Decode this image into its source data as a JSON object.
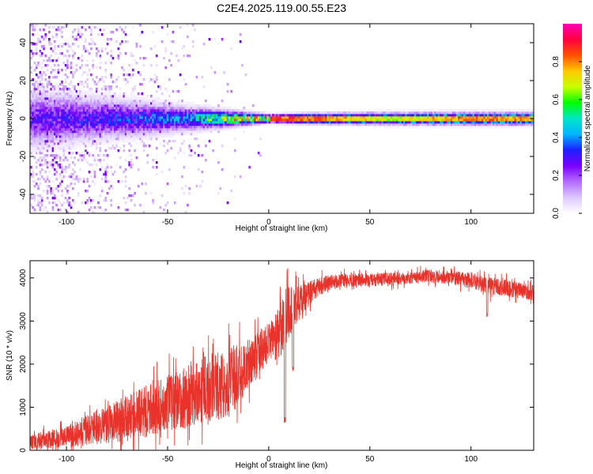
{
  "figure": {
    "title": "C2E4.2025.119.00.55.E23"
  },
  "chart_data": [
    {
      "type": "heatmap",
      "xlabel": "Height of straight line (km)",
      "ylabel": "Frequency (Hz)",
      "xlim": [
        -118,
        131
      ],
      "ylim": [
        -50,
        50
      ],
      "xticks": [
        -100,
        -50,
        0,
        50,
        100
      ],
      "yticks": [
        -40,
        -20,
        0,
        20,
        40
      ],
      "colorbar": {
        "label": "Normalized spectral amplitude",
        "range": [
          0,
          1
        ],
        "ticks": [
          "0.0",
          "0.2",
          "0.4",
          "0.6",
          "0.8"
        ],
        "colormap": [
          "#ffffff",
          "#dcc8ff",
          "#b46cff",
          "#7a00ff",
          "#1f1fff",
          "#00b4ff",
          "#00e6c8",
          "#00ff00",
          "#c8ff00",
          "#ffc800",
          "#ff5000",
          "#ff0040",
          "#ff00b4"
        ]
      },
      "grid": false,
      "band_profile": [
        {
          "x": -115,
          "width_hz": 14,
          "peak": 0.3,
          "scatter": 0.55
        },
        {
          "x": -100,
          "width_hz": 12,
          "peak": 0.32,
          "scatter": 0.45
        },
        {
          "x": -80,
          "width_hz": 10,
          "peak": 0.35,
          "scatter": 0.3
        },
        {
          "x": -60,
          "width_hz": 8,
          "peak": 0.4,
          "scatter": 0.15
        },
        {
          "x": -40,
          "width_hz": 6,
          "peak": 0.45,
          "scatter": 0.08
        },
        {
          "x": -20,
          "width_hz": 4,
          "peak": 0.75,
          "scatter": 0.03
        },
        {
          "x": 0,
          "width_hz": 2,
          "peak": 0.9,
          "scatter": 0.0
        },
        {
          "x": 20,
          "width_hz": 2.5,
          "peak": 0.88,
          "scatter": 0.0
        },
        {
          "x": 60,
          "width_hz": 3,
          "peak": 0.7,
          "scatter": 0.0
        },
        {
          "x": 100,
          "width_hz": 3,
          "peak": 0.85,
          "scatter": 0.0
        },
        {
          "x": 131,
          "width_hz": 3,
          "peak": 0.8,
          "scatter": 0.0
        }
      ]
    },
    {
      "type": "line",
      "xlabel": "Height of straight line (km)",
      "ylabel": "SNR (10 * v/v)",
      "xlim": [
        -118,
        131
      ],
      "ylim": [
        0,
        4400
      ],
      "xticks": [
        -100,
        -50,
        0,
        50,
        100
      ],
      "yticks": [
        0,
        1000,
        2000,
        3000,
        4000
      ],
      "grid": false,
      "series": [
        {
          "color": "#e8322a",
          "envelope": {
            "x": [
              -118,
              -100,
              -80,
              -60,
              -50,
              -40,
              -30,
              -20,
              -10,
              0,
              5,
              8,
              12,
              15,
              20,
              25,
              30,
              40,
              50,
              60,
              80,
              100,
              110,
              120,
              131
            ],
            "mean": [
              180,
              320,
              600,
              900,
              1100,
              1250,
              1450,
              1550,
              2000,
              2500,
              2700,
              3100,
              3300,
              3400,
              3650,
              3800,
              3900,
              3950,
              3950,
              3980,
              4050,
              3950,
              3800,
              3750,
              3650
            ],
            "spread": [
              180,
              250,
              450,
              600,
              650,
              700,
              800,
              800,
              600,
              450,
              600,
              700,
              500,
              400,
              300,
              220,
              180,
              150,
              150,
              150,
              150,
              180,
              200,
              200,
              180
            ]
          },
          "dips": [
            [
              8,
              620
            ],
            [
              12,
              1800
            ],
            [
              108,
              3100
            ]
          ]
        }
      ]
    }
  ]
}
